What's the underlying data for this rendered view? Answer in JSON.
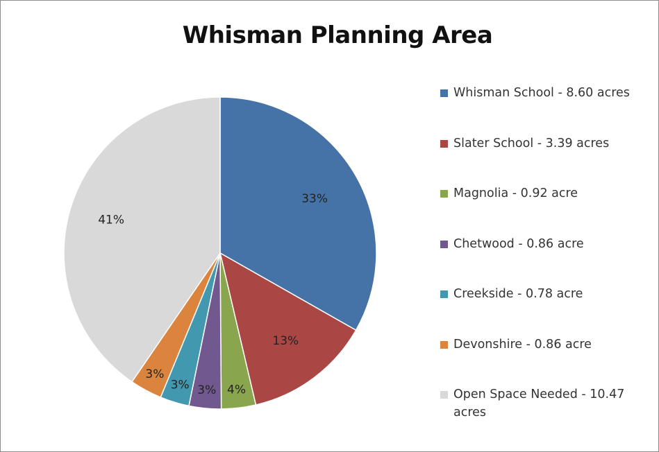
{
  "chart_data": {
    "type": "pie",
    "title": "Whisman Planning Area",
    "slices": [
      {
        "name": "Whisman School - 8.60 acres",
        "value": 8.6,
        "label": "33%",
        "color": "#4572A7"
      },
      {
        "name": "Slater School - 3.39 acres",
        "value": 3.39,
        "label": "13%",
        "color": "#AA4643"
      },
      {
        "name": "Magnolia - 0.92 acre",
        "value": 0.92,
        "label": "4%",
        "color": "#89A54E"
      },
      {
        "name": "Chetwood - 0.86 acre",
        "value": 0.86,
        "label": "3%",
        "color": "#71588F"
      },
      {
        "name": "Creekside - 0.78 acre",
        "value": 0.78,
        "label": "3%",
        "color": "#4198AF"
      },
      {
        "name": "Devonshire - 0.86 acre",
        "value": 0.86,
        "label": "3%",
        "color": "#DB843D"
      },
      {
        "name": "Open Space Needed - 10.47 acres",
        "value": 10.47,
        "label": "41%",
        "color": "#D9D9D9"
      }
    ],
    "legend_position": "right"
  }
}
